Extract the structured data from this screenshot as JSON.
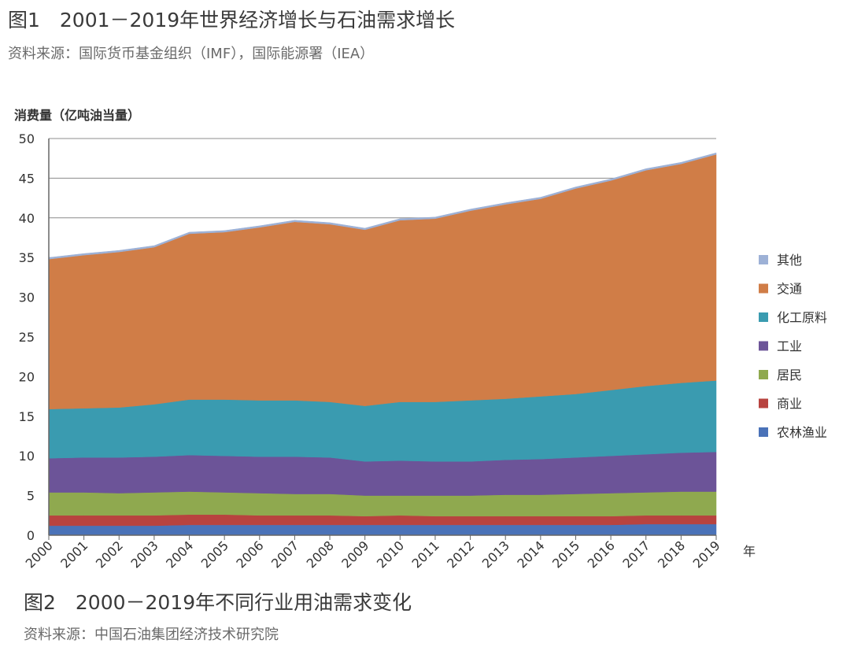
{
  "figure1": {
    "title": "图1　2001－2019年世界经济增长与石油需求增长",
    "source": "资料来源：国际货币基金组织（IMF），国际能源署（IEA）"
  },
  "figure2": {
    "title": "图2　2000－2019年不同行业用油需求变化",
    "source": "资料来源：中国石油集团经济技术研究院"
  },
  "chart_data": {
    "type": "area",
    "stacked": true,
    "ylabel": "消费量（亿吨油当量）",
    "xlabel": "年",
    "ylim": [
      0,
      50
    ],
    "yticks": [
      0,
      5,
      10,
      15,
      20,
      25,
      30,
      35,
      40,
      45,
      50
    ],
    "grid": "horizontal",
    "legend_position": "right",
    "x": [
      "2000",
      "2001",
      "2002",
      "2003",
      "2004",
      "2005",
      "2006",
      "2007",
      "2008",
      "2009",
      "2010",
      "2011",
      "2012",
      "2013",
      "2014",
      "2015",
      "2016",
      "2017",
      "2018",
      "2019"
    ],
    "series": [
      {
        "name": "农林渔业",
        "color": "#4a72b8",
        "values": [
          1.2,
          1.2,
          1.2,
          1.2,
          1.3,
          1.3,
          1.3,
          1.3,
          1.3,
          1.3,
          1.3,
          1.3,
          1.3,
          1.3,
          1.3,
          1.3,
          1.3,
          1.4,
          1.4,
          1.4
        ]
      },
      {
        "name": "商业",
        "color": "#b8433f",
        "values": [
          1.3,
          1.3,
          1.3,
          1.3,
          1.3,
          1.3,
          1.2,
          1.2,
          1.2,
          1.1,
          1.2,
          1.1,
          1.1,
          1.1,
          1.1,
          1.1,
          1.1,
          1.1,
          1.1,
          1.1
        ]
      },
      {
        "name": "居民",
        "color": "#8fa94f",
        "values": [
          2.9,
          2.9,
          2.8,
          2.9,
          2.9,
          2.8,
          2.8,
          2.7,
          2.7,
          2.6,
          2.5,
          2.6,
          2.6,
          2.7,
          2.7,
          2.8,
          2.9,
          2.9,
          3.0,
          3.0
        ]
      },
      {
        "name": "工业",
        "color": "#6c5498",
        "values": [
          4.3,
          4.4,
          4.5,
          4.5,
          4.6,
          4.6,
          4.6,
          4.7,
          4.6,
          4.3,
          4.4,
          4.3,
          4.3,
          4.4,
          4.5,
          4.6,
          4.7,
          4.8,
          4.9,
          5.0
        ]
      },
      {
        "name": "化工原料",
        "color": "#3a9bb0",
        "values": [
          6.2,
          6.2,
          6.3,
          6.6,
          7.0,
          7.1,
          7.1,
          7.1,
          7.0,
          7.0,
          7.4,
          7.5,
          7.7,
          7.7,
          7.9,
          8.0,
          8.3,
          8.6,
          8.8,
          9.0
        ]
      },
      {
        "name": "交通",
        "color": "#d07d47",
        "values": [
          18.9,
          19.3,
          19.6,
          19.8,
          20.9,
          21.1,
          21.8,
          22.5,
          22.4,
          22.2,
          22.9,
          23.1,
          23.9,
          24.5,
          24.9,
          25.9,
          26.4,
          27.2,
          27.6,
          28.5
        ]
      },
      {
        "name": "其他",
        "color": "#9db1d6",
        "values": [
          0.2,
          0.2,
          0.2,
          0.2,
          0.2,
          0.2,
          0.2,
          0.2,
          0.2,
          0.2,
          0.2,
          0.2,
          0.2,
          0.2,
          0.2,
          0.2,
          0.2,
          0.2,
          0.2,
          0.2
        ]
      }
    ],
    "legend_order": [
      "其他",
      "交通",
      "化工原料",
      "工业",
      "居民",
      "商业",
      "农林渔业"
    ]
  }
}
